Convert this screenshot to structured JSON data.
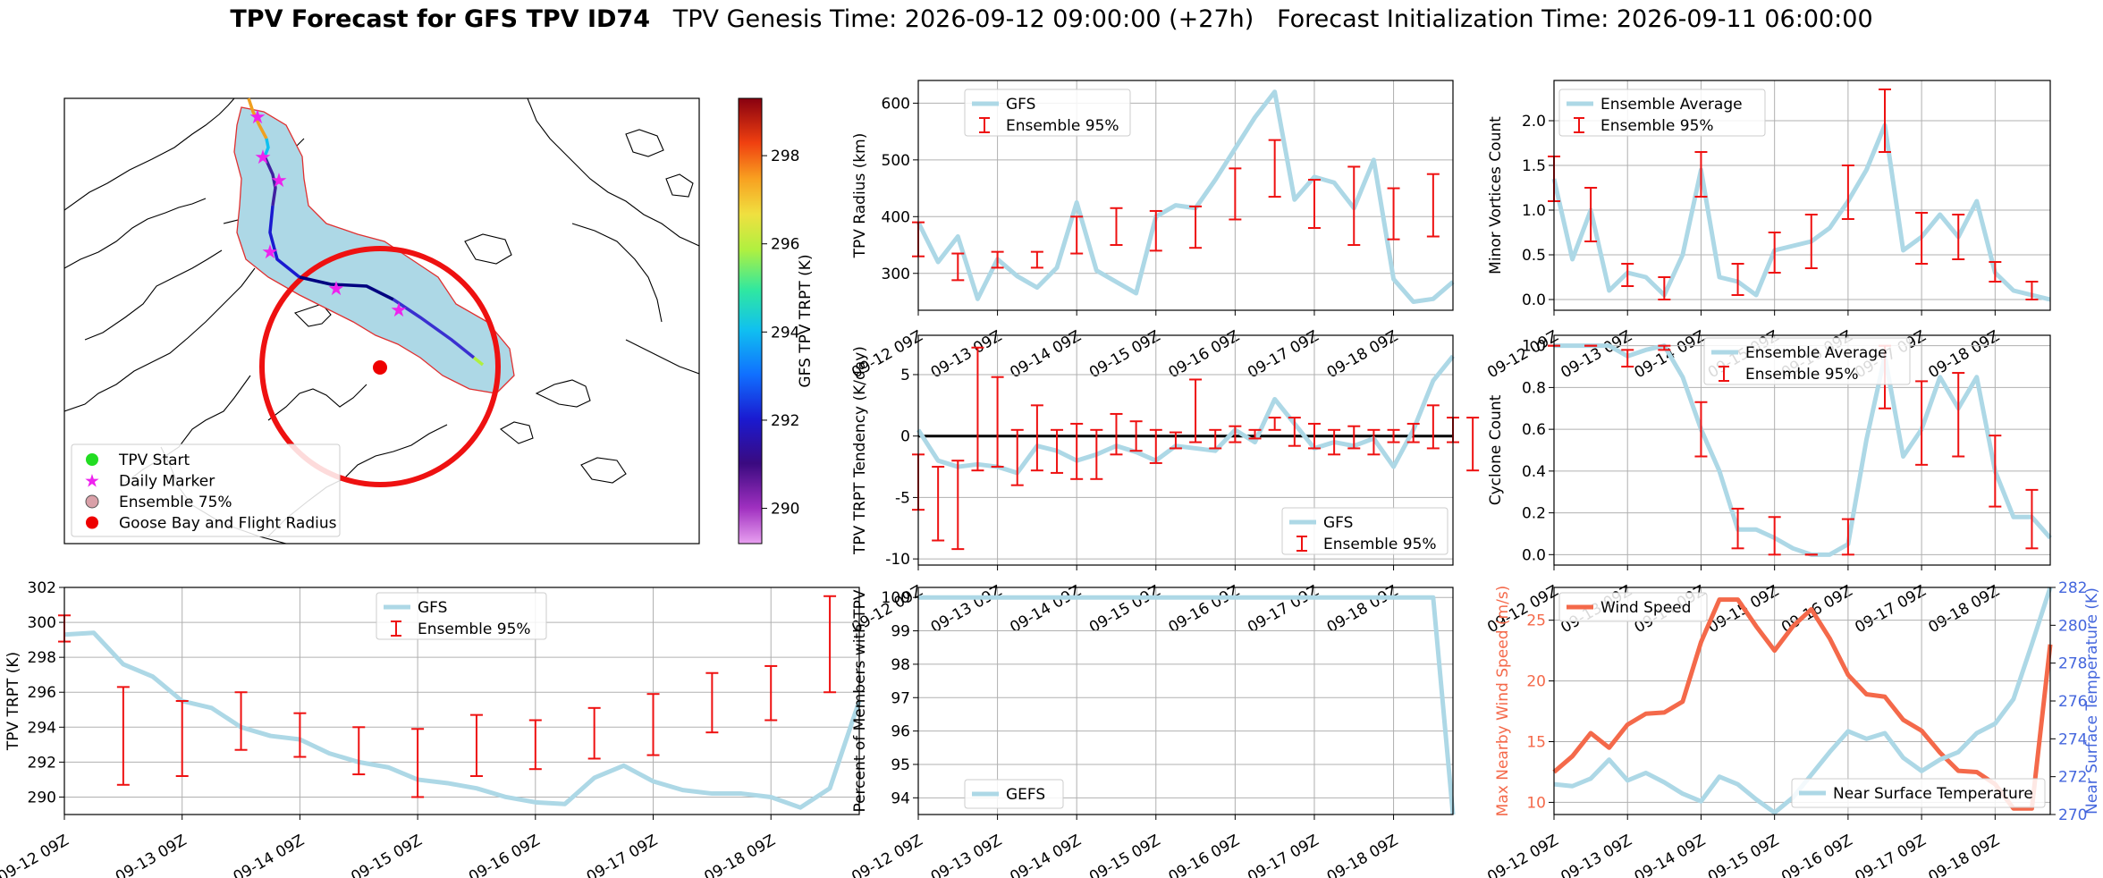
{
  "title": {
    "bold": "TPV Forecast for GFS TPV ID74",
    "genesis": "TPV Genesis Time: 2026-09-12 09:00:00 (+27h)",
    "init": "Forecast Initialization Time: 2026-09-11 06:00:00"
  },
  "map": {
    "colorbar_label": "GFS TPV TRPT (K)",
    "colorbar_ticks": [
      290,
      292,
      294,
      296,
      298
    ],
    "colorbar_range": [
      289.2,
      299.3
    ],
    "legend": [
      {
        "label": "TPV Start",
        "marker": "dot",
        "color": "#22dd22"
      },
      {
        "label": "Daily Marker",
        "marker": "star",
        "color": "#ee22ee"
      },
      {
        "label": "Ensemble 75%",
        "marker": "dot",
        "color": "#d9a0a8"
      },
      {
        "label": "Goose Bay and Flight Radius",
        "marker": "dot",
        "color": "#ee0000"
      }
    ]
  },
  "x_ticks": [
    "09-12 09Z",
    "09-13 09Z",
    "09-14 09Z",
    "09-15 09Z",
    "09-16 09Z",
    "09-17 09Z",
    "09-18 09Z"
  ],
  "colors": {
    "gfs": "#add8e6",
    "ens": "#ee1111",
    "wind": "#f4694a",
    "temp_axis": "#4466dd"
  },
  "chart_data": [
    {
      "id": "radius",
      "type": "line",
      "ylabel": "TPV Radius (km)",
      "ylim": [
        235,
        640
      ],
      "yticks": [
        300,
        400,
        500,
        600
      ],
      "series": [
        {
          "name": "GFS",
          "values": [
            390,
            320,
            365,
            255,
            325,
            295,
            275,
            310,
            425,
            305,
            285,
            265,
            400,
            420,
            415,
            465,
            520,
            575,
            620,
            430,
            470,
            460,
            415,
            500,
            290,
            250,
            255,
            285
          ]
        },
        {
          "name": "Ensemble 95%",
          "type": "errorbar",
          "bars": [
            [
              0,
              330,
              390
            ],
            [
              2,
              288,
              335
            ],
            [
              4,
              310,
              338
            ],
            [
              6,
              310,
              338
            ],
            [
              8,
              335,
              400
            ],
            [
              10,
              350,
              415
            ],
            [
              12,
              340,
              410
            ],
            [
              14,
              345,
              418
            ],
            [
              16,
              395,
              485
            ],
            [
              18,
              435,
              535
            ],
            [
              20,
              380,
              465
            ],
            [
              22,
              350,
              488
            ],
            [
              24,
              360,
              450
            ],
            [
              26,
              365,
              475
            ]
          ]
        }
      ]
    },
    {
      "id": "minor",
      "type": "line",
      "ylabel": "Minor Vortices Count",
      "ylim": [
        -0.12,
        2.45
      ],
      "yticks": [
        0.0,
        0.5,
        1.0,
        1.5,
        2.0
      ],
      "series": [
        {
          "name": "Ensemble Average",
          "values": [
            1.35,
            0.45,
            1.0,
            0.1,
            0.3,
            0.25,
            0.05,
            0.5,
            1.45,
            0.25,
            0.2,
            0.05,
            0.55,
            0.6,
            0.65,
            0.8,
            1.1,
            1.45,
            1.95,
            0.55,
            0.7,
            0.95,
            0.7,
            1.1,
            0.3,
            0.1,
            0.05,
            0.0
          ]
        },
        {
          "name": "Ensemble 95%",
          "type": "errorbar",
          "bars": [
            [
              0,
              1.1,
              1.6
            ],
            [
              2,
              0.65,
              1.25
            ],
            [
              4,
              0.15,
              0.4
            ],
            [
              6,
              0.0,
              0.25
            ],
            [
              8,
              1.15,
              1.65
            ],
            [
              10,
              0.05,
              0.4
            ],
            [
              12,
              0.3,
              0.75
            ],
            [
              14,
              0.35,
              0.95
            ],
            [
              16,
              0.9,
              1.5
            ],
            [
              18,
              1.65,
              2.35
            ],
            [
              20,
              0.4,
              0.97
            ],
            [
              22,
              0.45,
              0.95
            ],
            [
              24,
              0.2,
              0.42
            ],
            [
              26,
              0.0,
              0.2
            ]
          ]
        }
      ]
    },
    {
      "id": "tendency",
      "type": "line",
      "ylabel": "TPV TRPT Tendency (K/day)",
      "ylim": [
        -10.5,
        8.2
      ],
      "yticks": [
        -10,
        -5,
        0,
        5
      ],
      "zero_line": true,
      "series": [
        {
          "name": "GFS",
          "values": [
            0.5,
            -2.0,
            -2.5,
            -2.3,
            -2.5,
            -3.0,
            -0.8,
            -1.2,
            -2.0,
            -1.5,
            -0.8,
            -1.3,
            -2.0,
            -0.8,
            -1.0,
            -1.2,
            0.5,
            -0.5,
            3.0,
            1.0,
            -1.0,
            -0.5,
            -0.8,
            -0.2,
            -2.5,
            0.5,
            4.5,
            6.5
          ]
        },
        {
          "name": "Ensemble 95%",
          "type": "errorbar",
          "bars": [
            [
              0,
              -6.0,
              -1.5
            ],
            [
              1,
              -8.5,
              -2.5
            ],
            [
              2,
              -9.2,
              -2.0
            ],
            [
              3,
              -2.8,
              7.2
            ],
            [
              4,
              -2.5,
              4.8
            ],
            [
              5,
              -4.0,
              0.5
            ],
            [
              6,
              -2.8,
              2.5
            ],
            [
              7,
              -3.0,
              0.5
            ],
            [
              8,
              -3.5,
              1.0
            ],
            [
              9,
              -3.5,
              0.5
            ],
            [
              10,
              -1.5,
              1.8
            ],
            [
              11,
              -1.2,
              1.2
            ],
            [
              12,
              -2.2,
              0.5
            ],
            [
              13,
              -1.0,
              0.3
            ],
            [
              14,
              -0.5,
              4.6
            ],
            [
              15,
              -1.0,
              0.5
            ],
            [
              16,
              -0.5,
              0.8
            ],
            [
              17,
              -0.2,
              0.5
            ],
            [
              18,
              0.5,
              1.5
            ],
            [
              19,
              -0.8,
              1.5
            ],
            [
              20,
              -1.0,
              1.0
            ],
            [
              21,
              -1.5,
              0.5
            ],
            [
              22,
              -1.0,
              0.8
            ],
            [
              23,
              -1.5,
              0.5
            ],
            [
              24,
              -0.5,
              0.5
            ],
            [
              25,
              -0.5,
              1.0
            ],
            [
              26,
              -1.0,
              2.5
            ],
            [
              27,
              -0.5,
              1.5
            ],
            [
              28,
              -2.8,
              1.5
            ]
          ]
        }
      ]
    },
    {
      "id": "cyclone",
      "type": "line",
      "ylabel": "Cyclone Count",
      "ylim": [
        -0.05,
        1.05
      ],
      "yticks": [
        0.0,
        0.2,
        0.4,
        0.6,
        0.8,
        1.0
      ],
      "series": [
        {
          "name": "Ensemble Average",
          "values": [
            1.0,
            1.0,
            1.0,
            1.0,
            0.95,
            0.98,
            1.0,
            0.85,
            0.6,
            0.4,
            0.12,
            0.12,
            0.08,
            0.03,
            0.0,
            0.0,
            0.05,
            0.55,
            0.95,
            0.47,
            0.6,
            0.85,
            0.7,
            0.85,
            0.4,
            0.18,
            0.18,
            0.08
          ]
        },
        {
          "name": "Ensemble 95%",
          "type": "errorbar",
          "bars": [
            [
              0,
              1.0,
              1.0
            ],
            [
              2,
              1.0,
              1.0
            ],
            [
              4,
              0.9,
              0.98
            ],
            [
              6,
              0.98,
              1.0
            ],
            [
              8,
              0.47,
              0.73
            ],
            [
              10,
              0.03,
              0.22
            ],
            [
              12,
              0.0,
              0.18
            ],
            [
              14,
              0.0,
              0.0
            ],
            [
              16,
              0.0,
              0.17
            ],
            [
              18,
              0.7,
              1.0
            ],
            [
              20,
              0.43,
              0.83
            ],
            [
              22,
              0.47,
              0.87
            ],
            [
              24,
              0.23,
              0.57
            ],
            [
              26,
              0.03,
              0.31
            ]
          ]
        }
      ]
    },
    {
      "id": "trpt",
      "type": "line",
      "ylabel": "TPV TRPT (K)",
      "ylim": [
        289.0,
        302.0
      ],
      "yticks": [
        290,
        292,
        294,
        296,
        298,
        300,
        302
      ],
      "series": [
        {
          "name": "GFS",
          "values": [
            299.3,
            299.4,
            297.6,
            296.9,
            295.5,
            295.1,
            294.0,
            293.5,
            293.3,
            292.5,
            292.0,
            291.7,
            291.0,
            290.8,
            290.5,
            290.0,
            289.7,
            289.6,
            291.1,
            291.8,
            290.9,
            290.4,
            290.2,
            290.2,
            290.0,
            289.4,
            290.5,
            295.5
          ]
        },
        {
          "name": "Ensemble 95%",
          "type": "errorbar",
          "bars": [
            [
              0,
              298.9,
              300.4
            ],
            [
              2,
              290.7,
              296.3
            ],
            [
              4,
              291.2,
              295.5
            ],
            [
              6,
              292.7,
              296.0
            ],
            [
              8,
              292.3,
              294.8
            ],
            [
              10,
              291.3,
              294.0
            ],
            [
              12,
              290.0,
              293.9
            ],
            [
              14,
              291.2,
              294.7
            ],
            [
              16,
              291.6,
              294.4
            ],
            [
              18,
              292.2,
              295.1
            ],
            [
              20,
              292.4,
              295.9
            ],
            [
              22,
              293.7,
              297.1
            ],
            [
              24,
              294.4,
              297.5
            ],
            [
              26,
              296.0,
              301.5
            ]
          ]
        }
      ]
    },
    {
      "id": "percent",
      "type": "line",
      "ylabel": "Percent of Members with TPV",
      "ylim": [
        93.5,
        100.3
      ],
      "yticks": [
        94,
        95,
        96,
        97,
        98,
        99,
        100
      ],
      "series": [
        {
          "name": "GEFS",
          "values": [
            100,
            100,
            100,
            100,
            100,
            100,
            100,
            100,
            100,
            100,
            100,
            100,
            100,
            100,
            100,
            100,
            100,
            100,
            100,
            100,
            100,
            100,
            100,
            100,
            100,
            100,
            100,
            93.5
          ]
        }
      ]
    },
    {
      "id": "wind",
      "type": "line",
      "ylabel": "Max Nearby Wind Speed (m/s)",
      "ylim": [
        9,
        27.7
      ],
      "yticks": [
        10,
        15,
        20,
        25
      ],
      "y2label": "Near Surface Temperature (K)",
      "y2lim": [
        270,
        282
      ],
      "y2ticks": [
        270,
        272,
        274,
        276,
        278,
        280,
        282
      ],
      "series": [
        {
          "name": "Wind Speed",
          "axis": "left",
          "values": [
            12.5,
            13.8,
            15.7,
            14.5,
            16.4,
            17.3,
            17.4,
            18.3,
            23.2,
            26.7,
            26.7,
            24.5,
            22.5,
            24.5,
            25.9,
            23.5,
            20.5,
            18.9,
            18.7,
            16.8,
            15.9,
            14.1,
            12.6,
            12.5,
            11.5,
            9.5,
            9.5,
            23.0
          ]
        },
        {
          "name": "Near Surface Temperature",
          "axis": "right",
          "values": [
            271.6,
            271.5,
            271.9,
            272.9,
            271.8,
            272.2,
            271.7,
            271.1,
            270.7,
            272.0,
            271.6,
            270.8,
            270.1,
            270.9,
            272.1,
            273.3,
            274.4,
            274.0,
            274.3,
            273.0,
            272.3,
            272.9,
            273.3,
            274.3,
            274.8,
            276.1,
            279.0,
            282.0
          ]
        }
      ]
    }
  ],
  "legends": {
    "radius": [
      "GFS",
      "Ensemble 95%"
    ],
    "minor": [
      "Ensemble Average",
      "Ensemble 95%"
    ],
    "tendency": [
      "GFS",
      "Ensemble 95%"
    ],
    "cyclone": [
      "Ensemble Average",
      "Ensemble 95%"
    ],
    "trpt": [
      "GFS",
      "Ensemble 95%"
    ],
    "percent": [
      "GEFS"
    ],
    "wind": [
      "Wind Speed"
    ],
    "temp": [
      "Near Surface Temperature"
    ]
  }
}
